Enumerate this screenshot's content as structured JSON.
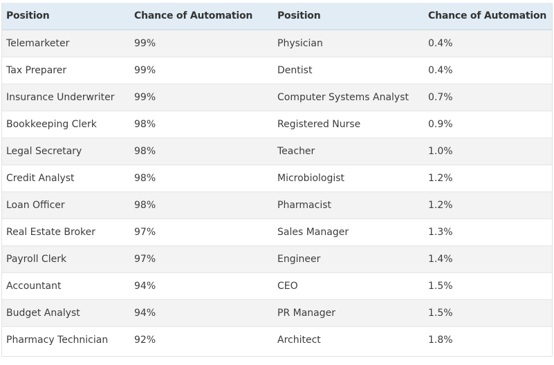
{
  "table": {
    "headers": [
      "Position",
      "Chance of Automation",
      "Position",
      "Chance of Automation"
    ],
    "rows": [
      [
        "Telemarketer",
        "99%",
        "Physician",
        "0.4%"
      ],
      [
        "Tax Preparer",
        "99%",
        "Dentist",
        "0.4%"
      ],
      [
        "Insurance Underwriter",
        "99%",
        "Computer Systems Analyst",
        "0.7%"
      ],
      [
        "Bookkeeping Clerk",
        "98%",
        "Registered Nurse",
        "0.9%"
      ],
      [
        "Legal Secretary",
        "98%",
        "Teacher",
        "1.0%"
      ],
      [
        "Credit Analyst",
        "98%",
        "Microbiologist",
        "1.2%"
      ],
      [
        "Loan Officer",
        "98%",
        "Pharmacist",
        "1.2%"
      ],
      [
        "Real Estate Broker",
        "97%",
        "Sales Manager",
        "1.3%"
      ],
      [
        "Payroll Clerk",
        "97%",
        "Engineer",
        "1.4%"
      ],
      [
        "Accountant",
        "94%",
        "CEO",
        "1.5%"
      ],
      [
        "Budget Analyst",
        "94%",
        "PR Manager",
        "1.5%"
      ],
      [
        "Pharmacy Technician",
        "92%",
        "Architect",
        "1.8%"
      ]
    ]
  },
  "colors": {
    "header_bg": "#e1ecf5",
    "row_odd_bg": "#f3f3f3",
    "row_even_bg": "#ffffff"
  }
}
